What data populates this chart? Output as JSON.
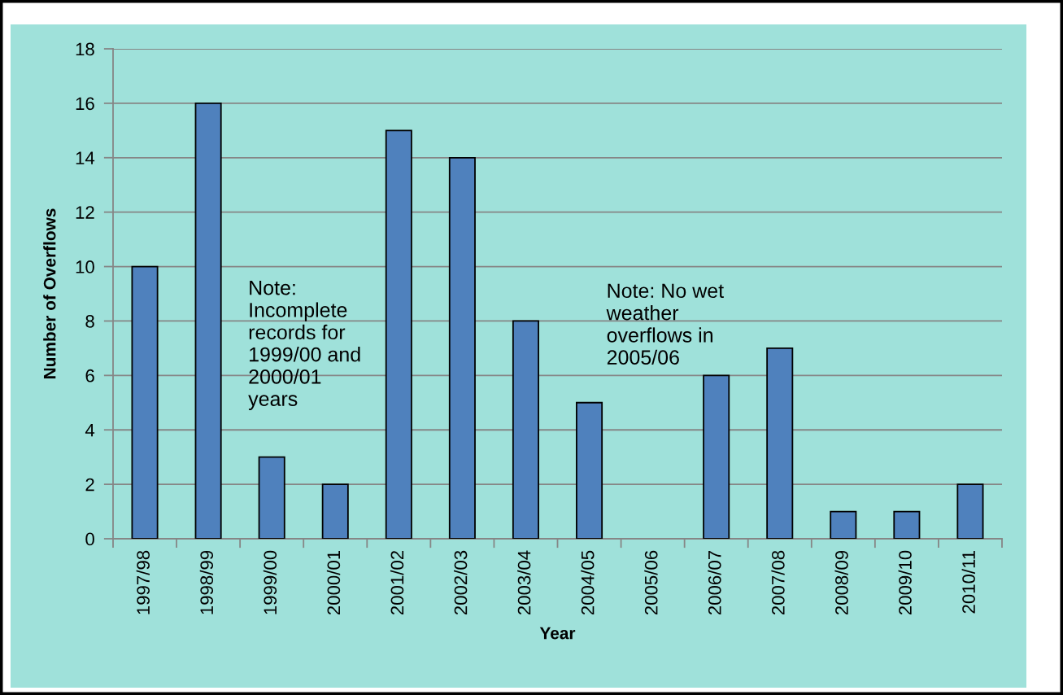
{
  "chart_data": {
    "type": "bar",
    "xlabel": "Year",
    "ylabel": "Number of Overflows",
    "categories": [
      "1997/98",
      "1998/99",
      "1999/00",
      "2000/01",
      "2001/02",
      "2002/03",
      "2003/04",
      "2004/05",
      "2005/06",
      "2006/07",
      "2007/08",
      "2008/09",
      "2009/10",
      "2010/11"
    ],
    "values": [
      10,
      16,
      3,
      2,
      15,
      14,
      8,
      5,
      0,
      6,
      7,
      1,
      1,
      2
    ],
    "color": "#4f81bd",
    "ylim": [
      0,
      18
    ],
    "yticks": [
      0,
      2,
      4,
      6,
      8,
      10,
      12,
      14,
      16,
      18
    ],
    "grid": "y",
    "annotations": [
      "Note:\nIncomplete\nrecords for\n1999/00 and\n2000/01\nyears",
      "Note: No wet\nweather\noverflows in\n2005/06"
    ]
  }
}
